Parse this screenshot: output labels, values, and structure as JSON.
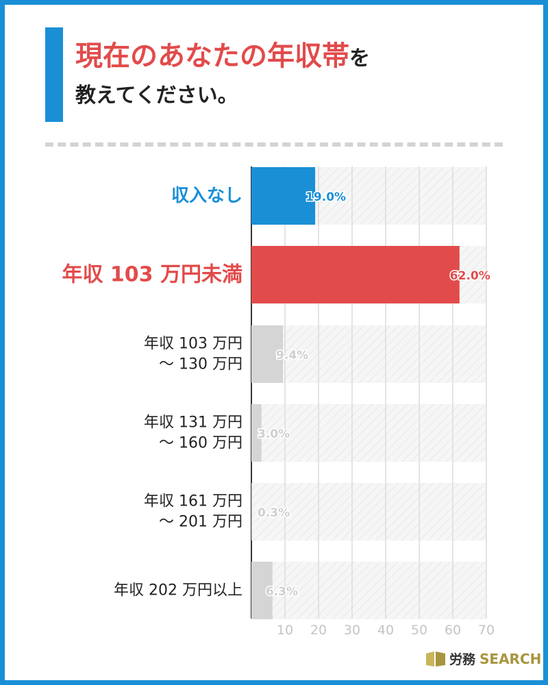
{
  "title": {
    "highlight": "現在のあなたの年収帯",
    "particle": "を",
    "line2": "教えてください。"
  },
  "colors": {
    "accent_blue": "#1a8fd6",
    "accent_red": "#e24b4b",
    "bar_gray": "#d5d5d5",
    "label_gray": "#cfcfcf",
    "logo_gold": "#a8953e"
  },
  "chart_data": {
    "type": "bar",
    "orientation": "horizontal",
    "title": "現在のあなたの年収帯を教えてください。",
    "categories": [
      [
        "収入なし"
      ],
      [
        "年収 103 万円未満"
      ],
      [
        "年収 103 万円",
        "～ 130 万円"
      ],
      [
        "年収 131 万円",
        "～ 160 万円"
      ],
      [
        "年収 161 万円",
        "～ 201 万円"
      ],
      [
        "年収 202 万円以上"
      ]
    ],
    "values": [
      19.0,
      62.0,
      9.4,
      3.0,
      0.3,
      6.3
    ],
    "value_labels": [
      "19.0%",
      "62.0%",
      "9.4%",
      "3.0%",
      "0.3%",
      "6.3%"
    ],
    "highlight": [
      "blue",
      "red",
      "none",
      "none",
      "none",
      "none"
    ],
    "xlim": [
      0,
      70
    ],
    "xticks": [
      10,
      20,
      30,
      40,
      50,
      60,
      70
    ],
    "grid": true
  },
  "logo": {
    "jp": "労務",
    "en": "SEARCH"
  }
}
